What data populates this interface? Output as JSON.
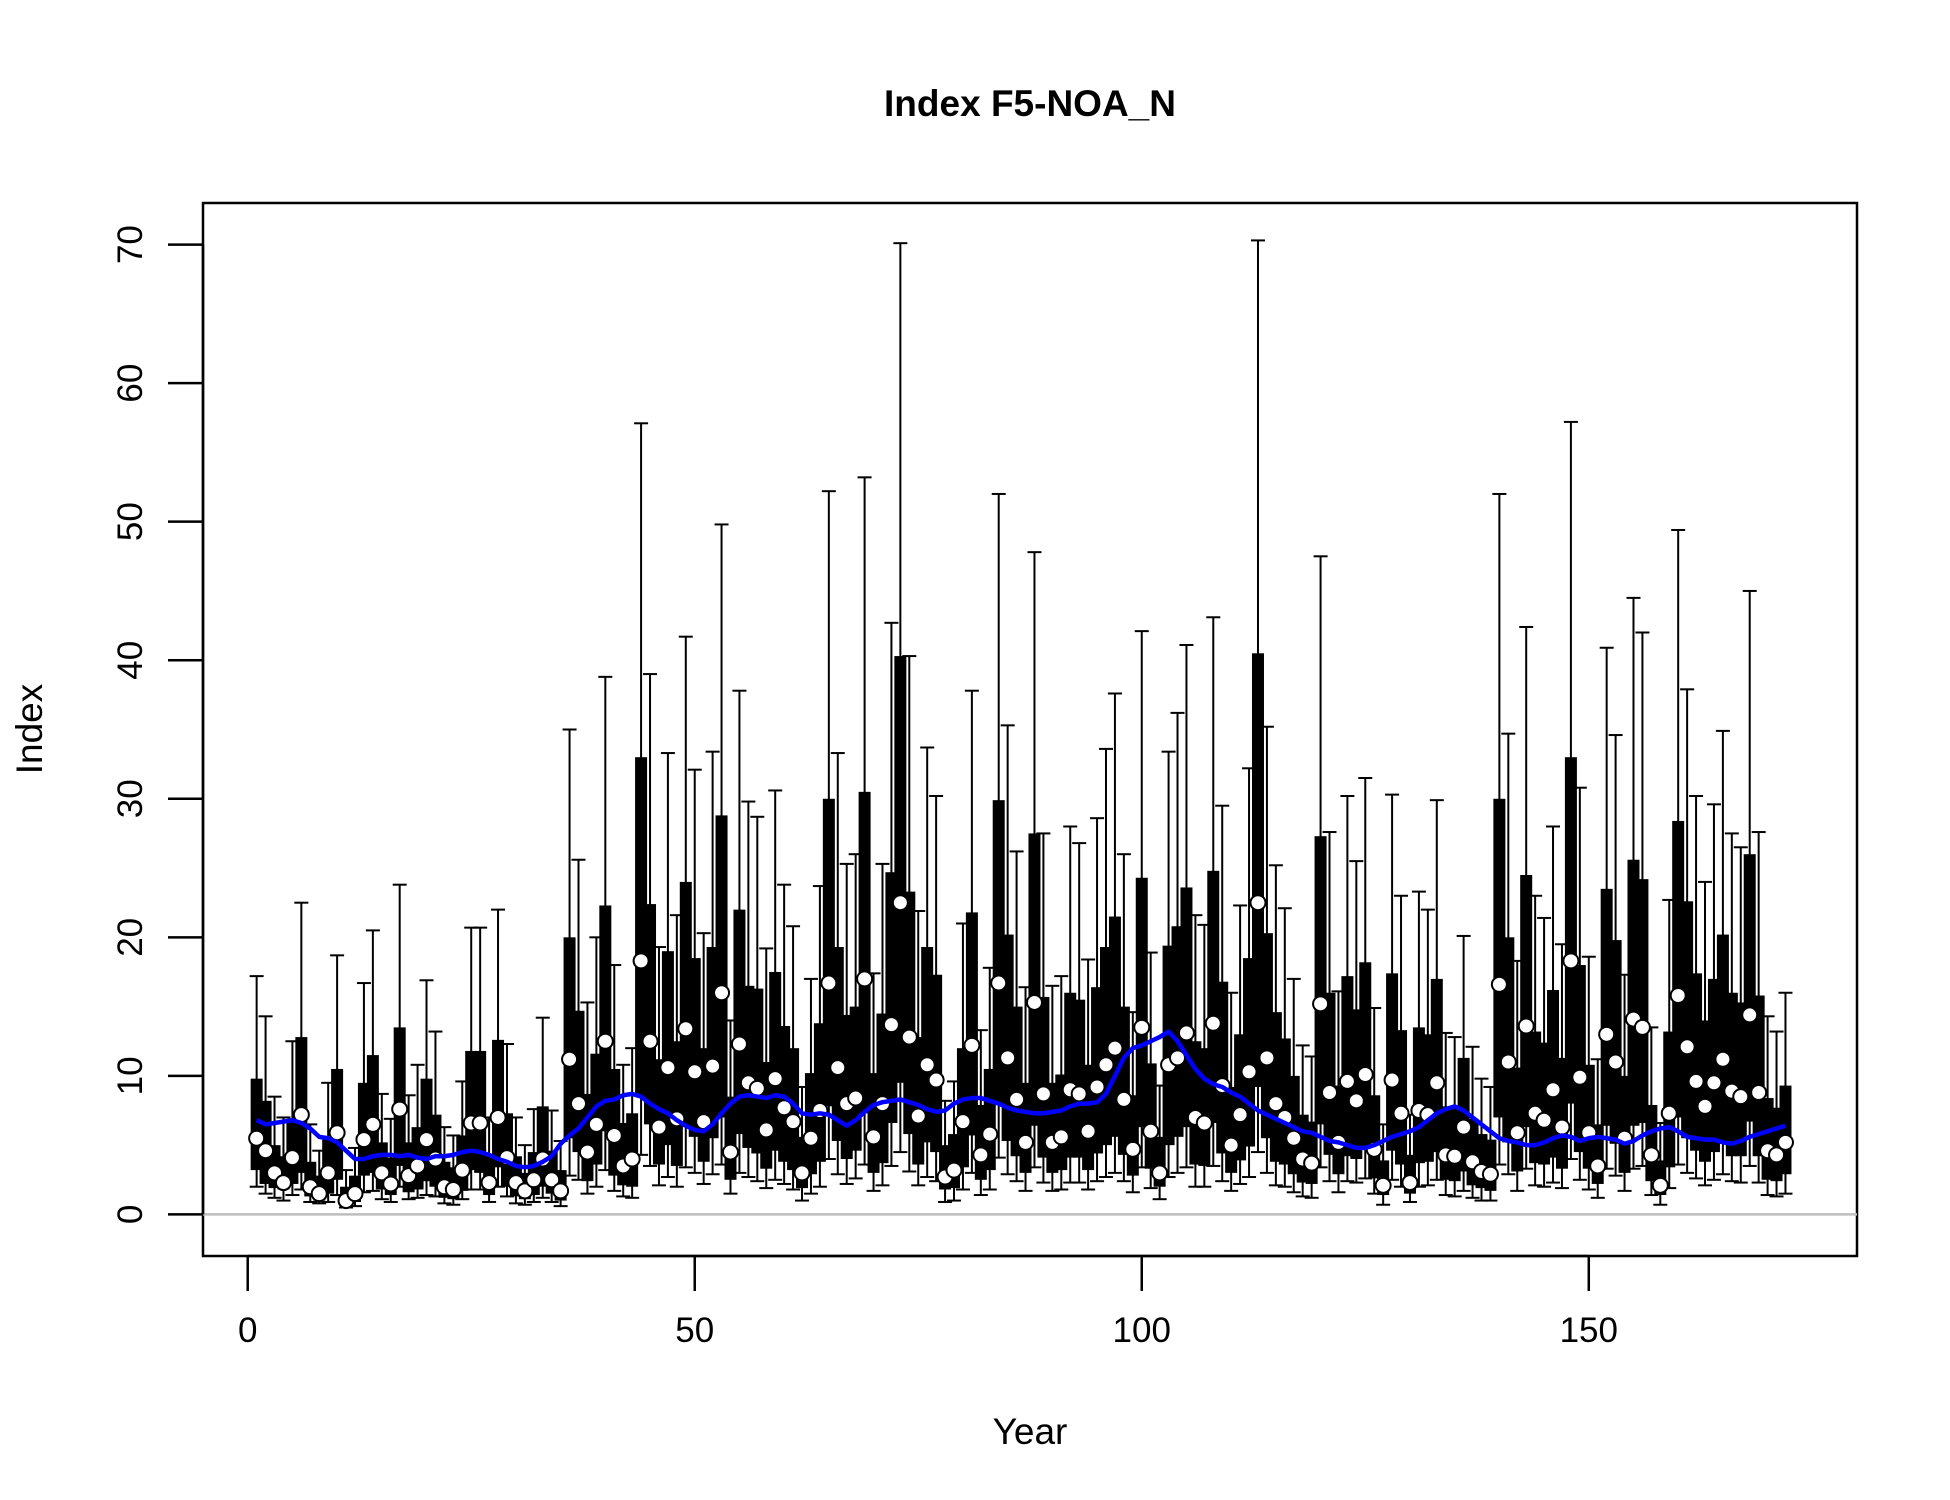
{
  "chart_data": {
    "type": "boxplot",
    "title": "Index F5-NOA_N",
    "xlabel": "Year",
    "ylabel": "Index",
    "xlim": [
      -5,
      180
    ],
    "ylim": [
      -3,
      73
    ],
    "x_ticks": [
      0,
      50,
      100,
      150
    ],
    "y_ticks": [
      0,
      10,
      20,
      30,
      40,
      50,
      60,
      70
    ],
    "reference_line_y": 0,
    "colors": {
      "box": "#000000",
      "whisker": "#000000",
      "point_fill": "#ffffff",
      "point_edge": "#000000",
      "trend": "#0000ff",
      "reference_line": "#bebebe"
    },
    "x": [
      1,
      2,
      3,
      4,
      5,
      6,
      7,
      8,
      9,
      10,
      11,
      12,
      13,
      14,
      15,
      16,
      17,
      18,
      19,
      20,
      21,
      22,
      23,
      24,
      25,
      26,
      27,
      28,
      29,
      30,
      31,
      32,
      33,
      34,
      35,
      36,
      37,
      38,
      39,
      40,
      41,
      42,
      43,
      44,
      45,
      46,
      47,
      48,
      49,
      50,
      51,
      52,
      53,
      54,
      55,
      56,
      57,
      58,
      59,
      60,
      61,
      62,
      63,
      64,
      65,
      66,
      67,
      68,
      69,
      70,
      71,
      72,
      73,
      74,
      75,
      76,
      77,
      78,
      79,
      80,
      81,
      82,
      83,
      84,
      85,
      86,
      87,
      88,
      89,
      90,
      91,
      92,
      93,
      94,
      95,
      96,
      97,
      98,
      99,
      100,
      101,
      102,
      103,
      104,
      105,
      106,
      107,
      108,
      109,
      110,
      111,
      112,
      113,
      114,
      115,
      116,
      117,
      118,
      119,
      120,
      121,
      122,
      123,
      124,
      125,
      126,
      127,
      128,
      129,
      130,
      131,
      132,
      133,
      134,
      135,
      136,
      137,
      138,
      139,
      140,
      141,
      142,
      143,
      144,
      145,
      146,
      147,
      148,
      149,
      150,
      151,
      152,
      153,
      154,
      155,
      156,
      157,
      158,
      159,
      160,
      161,
      162,
      163,
      164,
      165,
      166,
      167,
      168,
      169,
      170,
      171,
      172
    ],
    "point": [
      5.5,
      4.6,
      3.0,
      2.3,
      4.1,
      7.2,
      2.0,
      1.5,
      3.0,
      5.9,
      1.0,
      1.5,
      5.4,
      6.5,
      3.0,
      2.2,
      7.6,
      2.8,
      3.5,
      5.4,
      4.0,
      2.0,
      1.8,
      3.2,
      6.6,
      6.6,
      2.3,
      7.0,
      4.1,
      2.3,
      1.7,
      2.5,
      4.0,
      2.5,
      1.7,
      11.2,
      8.0,
      4.5,
      6.5,
      12.5,
      5.7,
      3.5,
      4.0,
      18.3,
      12.5,
      6.3,
      10.6,
      6.9,
      13.4,
      10.3,
      6.7,
      10.7,
      16.0,
      4.5,
      12.3,
      9.5,
      9.1,
      6.1,
      9.8,
      7.7,
      6.7,
      3.0,
      5.5,
      7.5,
      16.7,
      10.6,
      8.0,
      8.4,
      17.0,
      5.6,
      8.0,
      13.7,
      22.5,
      12.8,
      7.1,
      10.8,
      9.7,
      2.7,
      3.2,
      6.7,
      12.2,
      4.3,
      5.8,
      16.7,
      11.3,
      8.3,
      5.2,
      15.3,
      8.7,
      5.2,
      5.6,
      9.0,
      8.7,
      6.0,
      9.2,
      10.8,
      12.0,
      8.3,
      4.7,
      13.5,
      6.0,
      3.0,
      10.8,
      11.3,
      13.1,
      7.0,
      6.6,
      13.8,
      9.3,
      5.0,
      7.2,
      10.3,
      22.5,
      11.3,
      8.0,
      7.0,
      5.5,
      4.0,
      3.7,
      15.2,
      8.8,
      5.2,
      9.6,
      8.2,
      10.1,
      4.7,
      2.1,
      9.7,
      7.3,
      2.3,
      7.5,
      7.2,
      9.5,
      4.3,
      4.2,
      6.3,
      3.8,
      3.1,
      2.9,
      16.6,
      11.0,
      5.9,
      13.6,
      7.3,
      6.8,
      9.0,
      6.3,
      18.3,
      9.9,
      5.9,
      3.5,
      13.0,
      11.0,
      5.5,
      14.1,
      13.5,
      4.3,
      2.1,
      7.3,
      15.8,
      12.1,
      9.6,
      7.8,
      9.5,
      11.2,
      8.9,
      8.5,
      14.4,
      8.8,
      4.6,
      4.3,
      5.2
    ],
    "q1": [
      3.2,
      2.2,
      1.9,
      1.8,
      2.2,
      3.0,
      1.3,
      1.0,
      1.5,
      2.5,
      0.6,
      0.9,
      2.8,
      3.0,
      1.8,
      1.4,
      3.5,
      1.6,
      1.8,
      2.4,
      2.0,
      1.2,
      1.1,
      1.7,
      3.2,
      3.0,
      1.4,
      3.4,
      2.0,
      1.3,
      1.1,
      1.4,
      2.0,
      1.5,
      1.0,
      5.5,
      4.5,
      2.4,
      3.6,
      6.0,
      2.8,
      2.1,
      2.0,
      8.5,
      6.5,
      3.6,
      5.0,
      3.5,
      6.3,
      5.6,
      3.8,
      5.5,
      7.0,
      2.5,
      5.8,
      4.8,
      4.4,
      3.3,
      4.6,
      3.8,
      3.2,
      1.9,
      2.9,
      3.8,
      7.8,
      5.3,
      4.0,
      4.6,
      7.3,
      3.0,
      3.7,
      6.6,
      9.5,
      5.8,
      3.6,
      5.2,
      4.5,
      1.8,
      1.9,
      3.4,
      5.7,
      2.5,
      3.2,
      7.9,
      5.3,
      4.2,
      3.0,
      6.4,
      4.1,
      3.0,
      3.2,
      4.1,
      4.1,
      3.2,
      4.4,
      5.0,
      5.6,
      4.3,
      2.8,
      6.3,
      3.3,
      2.0,
      5.0,
      5.6,
      6.3,
      3.6,
      3.5,
      6.6,
      4.4,
      3.0,
      3.9,
      4.9,
      9.2,
      5.5,
      3.8,
      3.6,
      2.9,
      2.3,
      2.2,
      6.5,
      4.3,
      2.9,
      4.2,
      4.0,
      4.8,
      2.6,
      1.4,
      4.6,
      3.6,
      1.5,
      3.7,
      3.8,
      4.5,
      2.5,
      2.4,
      3.1,
      2.1,
      1.9,
      1.7,
      7.0,
      5.2,
      3.1,
      6.3,
      3.7,
      3.6,
      4.1,
      3.3,
      8.0,
      4.5,
      3.3,
      2.2,
      6.4,
      5.1,
      3.0,
      6.4,
      6.6,
      2.4,
      1.4,
      3.4,
      7.0,
      5.5,
      4.6,
      3.8,
      4.5,
      5.3,
      4.2,
      4.2,
      6.7,
      4.2,
      2.5,
      2.4,
      2.9
    ],
    "q3": [
      9.8,
      8.2,
      5.0,
      4.2,
      6.8,
      12.8,
      3.8,
      2.8,
      5.5,
      10.5,
      2.0,
      2.8,
      9.5,
      11.5,
      5.2,
      4.1,
      13.5,
      5.2,
      6.3,
      9.8,
      7.2,
      3.8,
      3.4,
      5.7,
      11.8,
      11.8,
      4.2,
      12.6,
      7.3,
      4.2,
      3.0,
      4.5,
      7.8,
      4.6,
      3.2,
      20.0,
      14.7,
      8.7,
      11.6,
      22.3,
      10.5,
      6.6,
      7.3,
      33.0,
      22.4,
      11.2,
      19.0,
      12.5,
      24.0,
      18.5,
      12.0,
      19.3,
      28.8,
      8.5,
      22.0,
      16.5,
      16.3,
      11.0,
      17.5,
      13.6,
      12.0,
      5.6,
      10.2,
      13.8,
      30.0,
      19.3,
      14.4,
      15.0,
      30.5,
      10.2,
      14.5,
      24.7,
      40.3,
      23.3,
      12.8,
      19.3,
      17.3,
      5.0,
      5.8,
      12.0,
      21.8,
      7.9,
      10.5,
      29.9,
      20.2,
      15.0,
      9.5,
      27.5,
      15.7,
      9.5,
      10.1,
      16.0,
      15.5,
      10.8,
      16.4,
      19.3,
      21.5,
      15.0,
      8.6,
      24.3,
      10.9,
      5.6,
      19.4,
      20.8,
      23.6,
      12.5,
      12.0,
      24.8,
      16.8,
      9.2,
      13.0,
      18.5,
      40.5,
      20.3,
      14.6,
      12.7,
      10.0,
      7.2,
      6.7,
      27.3,
      16.0,
      9.3,
      17.2,
      14.8,
      18.2,
      8.6,
      3.9,
      17.4,
      13.3,
      4.3,
      13.5,
      13.0,
      17.0,
      7.8,
      7.6,
      11.3,
      6.9,
      5.8,
      5.4,
      30.0,
      20.0,
      10.6,
      24.5,
      13.2,
      12.4,
      16.2,
      11.3,
      33.0,
      18.0,
      10.8,
      6.5,
      23.5,
      19.8,
      10.0,
      25.6,
      24.2,
      7.9,
      3.9,
      13.2,
      28.4,
      22.6,
      17.4,
      14.0,
      17.0,
      20.2,
      16.0,
      15.3,
      26.0,
      15.8,
      8.4,
      7.7,
      9.3
    ],
    "lo": [
      2.0,
      1.5,
      1.2,
      1.0,
      1.4,
      1.8,
      0.9,
      0.8,
      0.9,
      1.4,
      0.5,
      0.6,
      1.6,
      1.7,
      1.1,
      0.9,
      2.0,
      1.1,
      1.2,
      1.4,
      1.3,
      0.8,
      0.7,
      1.1,
      1.8,
      1.8,
      0.9,
      2.0,
      1.3,
      0.8,
      0.7,
      0.9,
      1.2,
      0.9,
      0.6,
      2.8,
      2.5,
      1.5,
      2.0,
      3.2,
      1.7,
      1.3,
      1.2,
      4.3,
      3.5,
      2.1,
      2.7,
      2.0,
      3.4,
      3.0,
      2.2,
      2.9,
      3.6,
      1.5,
      3.0,
      2.7,
      2.4,
      1.9,
      2.5,
      2.2,
      1.8,
      1.0,
      1.5,
      2.0,
      4.0,
      2.9,
      2.2,
      2.6,
      3.6,
      1.7,
      2.1,
      3.5,
      4.5,
      3.1,
      2.1,
      2.7,
      2.4,
      0.9,
      1.0,
      1.8,
      3.0,
      1.4,
      1.8,
      4.1,
      2.9,
      2.4,
      1.7,
      3.4,
      2.3,
      1.7,
      1.8,
      2.3,
      2.3,
      1.8,
      2.4,
      2.7,
      3.0,
      2.4,
      1.6,
      3.4,
      1.9,
      1.1,
      2.7,
      3.0,
      3.4,
      2.0,
      2.0,
      3.5,
      2.4,
      1.7,
      2.2,
      2.7,
      4.5,
      3.0,
      2.1,
      2.0,
      1.6,
      1.3,
      1.2,
      3.4,
      2.4,
      1.6,
      2.4,
      2.3,
      2.6,
      1.5,
      0.7,
      2.5,
      2.0,
      0.9,
      2.0,
      2.1,
      2.5,
      1.4,
      1.3,
      1.7,
      1.2,
      1.0,
      1.0,
      3.6,
      2.9,
      1.7,
      3.3,
      2.1,
      2.0,
      2.3,
      1.9,
      4.0,
      2.5,
      1.8,
      1.2,
      3.3,
      2.8,
      1.7,
      3.3,
      3.5,
      1.4,
      0.7,
      1.9,
      3.6,
      3.0,
      2.6,
      2.1,
      2.5,
      2.9,
      2.4,
      2.3,
      3.5,
      2.3,
      1.4,
      1.3,
      1.5
    ],
    "hi": [
      17.2,
      14.3,
      8.5,
      7.0,
      12.5,
      22.5,
      6.5,
      4.6,
      9.5,
      18.7,
      3.2,
      4.8,
      16.7,
      20.5,
      8.7,
      6.9,
      23.8,
      8.6,
      10.8,
      16.9,
      13.2,
      6.3,
      5.7,
      9.6,
      20.7,
      20.7,
      7.0,
      22.0,
      12.3,
      7.0,
      5.0,
      7.6,
      14.2,
      7.5,
      5.3,
      35.0,
      25.6,
      15.3,
      20.0,
      38.8,
      18.0,
      10.8,
      12.0,
      57.1,
      39.0,
      19.3,
      33.3,
      21.6,
      41.7,
      32.1,
      20.3,
      33.4,
      49.8,
      14.0,
      37.8,
      29.8,
      28.7,
      19.2,
      30.6,
      23.8,
      20.8,
      9.2,
      17.0,
      23.7,
      52.2,
      33.3,
      25.3,
      26.0,
      53.2,
      17.4,
      25.3,
      42.7,
      70.1,
      40.3,
      21.9,
      33.7,
      30.2,
      8.2,
      9.6,
      21.0,
      37.8,
      13.3,
      17.8,
      52.0,
      35.3,
      26.2,
      16.4,
      47.8,
      27.5,
      16.5,
      17.2,
      28.0,
      26.8,
      18.4,
      28.6,
      33.6,
      37.6,
      26.0,
      14.6,
      42.1,
      18.9,
      9.3,
      33.4,
      36.2,
      41.1,
      21.6,
      20.9,
      43.1,
      29.5,
      16.0,
      22.3,
      32.2,
      70.3,
      35.2,
      25.2,
      22.1,
      17.0,
      12.2,
      11.4,
      47.5,
      27.6,
      16.1,
      30.2,
      25.5,
      31.5,
      14.9,
      6.5,
      30.3,
      23.0,
      7.2,
      23.3,
      22.0,
      29.9,
      13.1,
      12.8,
      20.1,
      12.1,
      9.8,
      9.2,
      52.0,
      34.7,
      18.3,
      42.4,
      23.0,
      21.4,
      28.0,
      19.5,
      57.2,
      30.8,
      18.6,
      11.2,
      40.9,
      34.6,
      17.3,
      44.5,
      42.0,
      13.5,
      6.6,
      22.7,
      49.4,
      37.9,
      30.2,
      24.0,
      29.6,
      34.9,
      27.5,
      26.5,
      45.0,
      27.6,
      14.3,
      13.2,
      16.0
    ],
    "trend": [
      6.8,
      6.5,
      6.6,
      6.7,
      6.8,
      6.6,
      6.2,
      5.6,
      5.5,
      5.2,
      4.6,
      4.0,
      4.0,
      4.2,
      4.3,
      4.3,
      4.2,
      4.3,
      4.1,
      4.0,
      4.2,
      4.2,
      4.3,
      4.5,
      4.6,
      4.5,
      4.3,
      4.0,
      3.8,
      3.5,
      3.4,
      3.5,
      3.8,
      4.2,
      5.1,
      5.7,
      6.2,
      7.0,
      7.8,
      8.2,
      8.3,
      8.6,
      8.7,
      8.5,
      8.0,
      7.6,
      7.3,
      6.8,
      6.4,
      6.1,
      6.0,
      6.5,
      7.3,
      8.0,
      8.5,
      8.6,
      8.5,
      8.4,
      8.6,
      8.5,
      8.0,
      7.3,
      7.2,
      7.3,
      7.2,
      6.8,
      6.4,
      6.8,
      7.4,
      7.9,
      8.1,
      8.2,
      8.3,
      8.1,
      7.9,
      7.6,
      7.4,
      7.5,
      8.0,
      8.3,
      8.4,
      8.4,
      8.2,
      8.0,
      7.7,
      7.5,
      7.4,
      7.3,
      7.3,
      7.4,
      7.5,
      7.8,
      8.0,
      8.0,
      8.1,
      8.7,
      10.0,
      11.3,
      12.0,
      12.2,
      12.5,
      12.8,
      13.2,
      12.5,
      11.5,
      10.5,
      9.8,
      9.4,
      9.2,
      8.8,
      8.5,
      8.0,
      7.5,
      7.2,
      6.9,
      6.6,
      6.3,
      6.0,
      5.9,
      5.6,
      5.3,
      5.2,
      5.0,
      4.8,
      4.8,
      5.0,
      5.3,
      5.6,
      5.8,
      6.0,
      6.3,
      6.8,
      7.3,
      7.6,
      7.8,
      7.5,
      7.0,
      6.5,
      6.0,
      5.5,
      5.3,
      5.2,
      5.0,
      5.0,
      5.2,
      5.5,
      5.7,
      5.6,
      5.3,
      5.5,
      5.6,
      5.5,
      5.4,
      5.1,
      5.3,
      5.7,
      6.0,
      6.2,
      6.3,
      6.0,
      5.6,
      5.5,
      5.4,
      5.4,
      5.2,
      5.1,
      5.3,
      5.6,
      5.8,
      6.0,
      6.2,
      6.4
    ]
  }
}
